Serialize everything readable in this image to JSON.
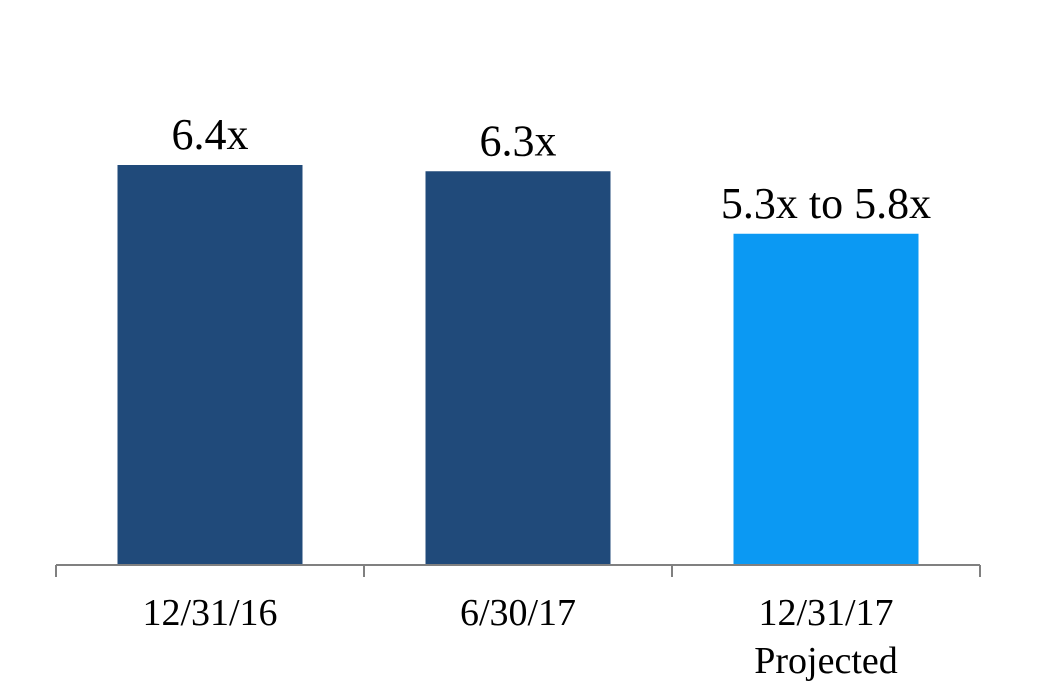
{
  "chart_data": {
    "type": "bar",
    "title": "",
    "xlabel": "",
    "ylabel": "",
    "categories": [
      "12/31/16",
      "6/30/17",
      "12/31/17"
    ],
    "category_sublabels": [
      "",
      "",
      "Projected"
    ],
    "values": [
      6.4,
      6.3,
      5.3
    ],
    "data_labels": [
      "6.4x",
      "6.3x",
      "5.3x to 5.8x"
    ],
    "bar_colors": [
      "#204a7a",
      "#204a7a",
      "#0b99f3"
    ],
    "axis_color": "#808080",
    "ylim": [
      0,
      6.4
    ],
    "grid": false,
    "legend": "none"
  }
}
